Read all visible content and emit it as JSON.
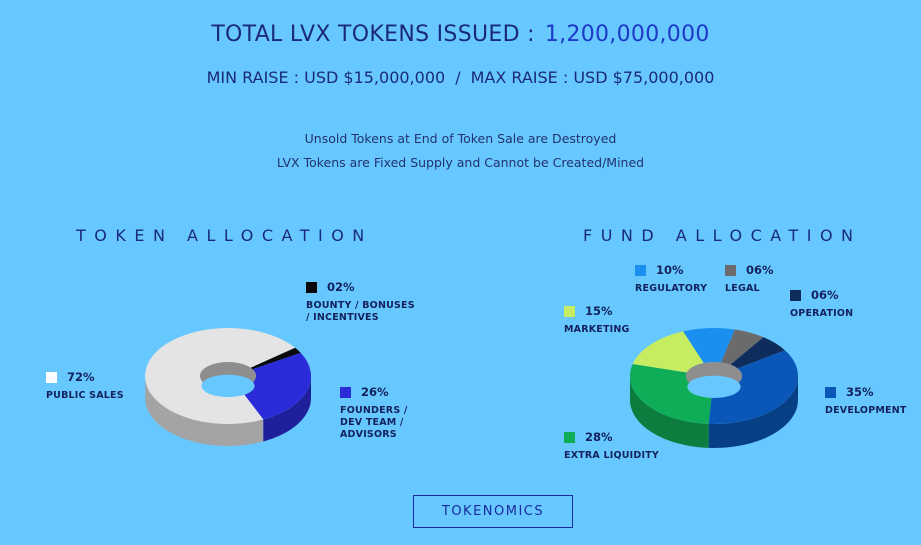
{
  "header": {
    "title_label": "TOTAL LVX TOKENS ISSUED :",
    "title_value": "1,200,000,000",
    "min_raise": "MIN RAISE : USD $15,000,000",
    "separator": "/",
    "max_raise": "MAX RAISE : USD $75,000,000"
  },
  "notes": {
    "line1": "Unsold Tokens at End of Token Sale are Destroyed",
    "line2": "LVX Tokens are Fixed Supply and Cannot be Created/Mined"
  },
  "button": {
    "label": "TOKENOMICS"
  },
  "chart_data": [
    {
      "type": "pie",
      "title": "TOKEN ALLOCATION",
      "slices": [
        {
          "label": "PUBLIC SALES",
          "value_label": "72%",
          "value": 72,
          "color": "#e4e4e4"
        },
        {
          "label": "BOUNTY / BONUSES / INCENTIVES",
          "value_label": "02%",
          "value": 2,
          "color": "#0a0a0a"
        },
        {
          "label": "FOUNDERS / DEV TEAM / ADVISORS",
          "value_label": "26%",
          "value": 26,
          "color": "#2b2bd9"
        }
      ]
    },
    {
      "type": "pie",
      "title": "FUND ALLOCATION",
      "slices": [
        {
          "label": "REGULATORY",
          "value_label": "10%",
          "value": 10,
          "color": "#1a8ff0"
        },
        {
          "label": "LEGAL",
          "value_label": "06%",
          "value": 6,
          "color": "#6b6b6b"
        },
        {
          "label": "OPERATION",
          "value_label": "06%",
          "value": 6,
          "color": "#0f2d5c"
        },
        {
          "label": "DEVELOPMENT",
          "value_label": "35%",
          "value": 35,
          "color": "#0a57b8"
        },
        {
          "label": "EXTRA LIQUIDITY",
          "value_label": "28%",
          "value": 28,
          "color": "#10ad58"
        },
        {
          "label": "MARKETING",
          "value_label": "15%",
          "value": 15,
          "color": "#c6ec62"
        }
      ]
    }
  ]
}
